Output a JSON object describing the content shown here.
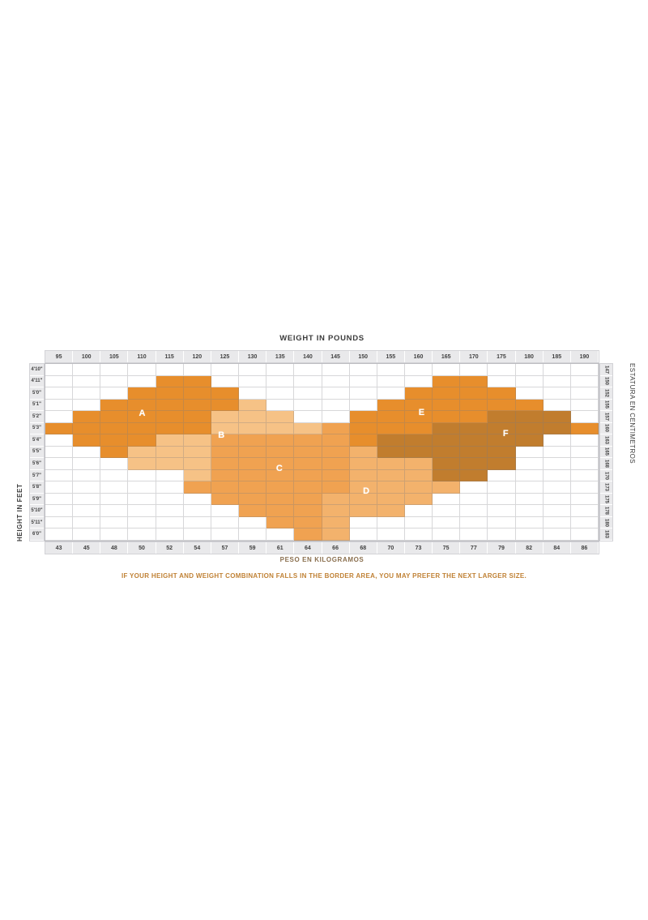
{
  "footnote": "IF YOUR HEIGHT AND WEIGHT COMBINATION FALLS IN THE BORDER AREA, YOU MAY PREFER THE NEXT LARGER SIZE.",
  "chart_data": {
    "type": "heatmap",
    "title": "WEIGHT IN POUNDS",
    "axes": {
      "top": {
        "label": "WEIGHT IN POUNDS",
        "unit": "lb",
        "ticks": [
          95,
          100,
          105,
          110,
          115,
          120,
          125,
          130,
          135,
          140,
          145,
          150,
          155,
          160,
          165,
          170,
          175,
          180,
          185,
          190
        ]
      },
      "bottom": {
        "label": "PESO EN KILOGRAMOS",
        "unit": "kg",
        "ticks": [
          43,
          45,
          48,
          50,
          52,
          54,
          57,
          59,
          61,
          64,
          66,
          68,
          70,
          73,
          75,
          77,
          79,
          82,
          84,
          86
        ]
      },
      "left": {
        "label": "HEIGHT IN FEET",
        "unit": "ft-in",
        "ticks": [
          "4'10\"",
          "4'11\"",
          "5'0\"",
          "5'1\"",
          "5'2\"",
          "5'3\"",
          "5'4\"",
          "5'5\"",
          "5'6\"",
          "5'7\"",
          "5'8\"",
          "5'9\"",
          "5'10\"",
          "5'11\"",
          "6'0\""
        ]
      },
      "right": {
        "label": "ESTATURA EN CENTIMETROS",
        "unit": "cm",
        "ticks": [
          147,
          150,
          152,
          155,
          157,
          160,
          163,
          165,
          168,
          170,
          173,
          175,
          178,
          180,
          183
        ]
      }
    },
    "colors": {
      "A": "#e78e2c",
      "B": "#f6c286",
      "C": "#f0a251",
      "D": "#f3b26c",
      "E": "#e78e2c",
      "F": "#c17d2e"
    },
    "size_labels": [
      {
        "size": "A",
        "x_pct": 17.5,
        "y_pct": 28.2
      },
      {
        "size": "B",
        "x_pct": 31.8,
        "y_pct": 40.5
      },
      {
        "size": "C",
        "x_pct": 42.3,
        "y_pct": 59.0
      },
      {
        "size": "D",
        "x_pct": 58.0,
        "y_pct": 72.0
      },
      {
        "size": "E",
        "x_pct": 68.0,
        "y_pct": 27.5
      },
      {
        "size": "F",
        "x_pct": 83.2,
        "y_pct": 39.5
      }
    ],
    "grid_rows": [
      {
        "height_ft": "4'10\"",
        "height_cm": 147,
        "runs": []
      },
      {
        "height_ft": "4'11\"",
        "height_cm": 150,
        "runs": [
          {
            "s": "A",
            "f": 5,
            "t": 6
          },
          {
            "s": "E",
            "f": 15,
            "t": 16
          }
        ]
      },
      {
        "height_ft": "5'0\"",
        "height_cm": 152,
        "runs": [
          {
            "s": "A",
            "f": 4,
            "t": 7
          },
          {
            "s": "E",
            "f": 14,
            "t": 17
          }
        ]
      },
      {
        "height_ft": "5'1\"",
        "height_cm": 155,
        "runs": [
          {
            "s": "A",
            "f": 3,
            "t": 7
          },
          {
            "s": "B",
            "f": 8,
            "t": 8
          },
          {
            "s": "E",
            "f": 13,
            "t": 18
          }
        ]
      },
      {
        "height_ft": "5'2\"",
        "height_cm": 157,
        "runs": [
          {
            "s": "A",
            "f": 2,
            "t": 6
          },
          {
            "s": "B",
            "f": 7,
            "t": 9
          },
          {
            "s": "E",
            "f": 12,
            "t": 16
          },
          {
            "s": "F",
            "f": 17,
            "t": 19
          }
        ]
      },
      {
        "height_ft": "5'3\"",
        "height_cm": 160,
        "runs": [
          {
            "s": "A",
            "f": 1,
            "t": 6
          },
          {
            "s": "B",
            "f": 7,
            "t": 10
          },
          {
            "s": "C",
            "f": 11,
            "t": 11
          },
          {
            "s": "E",
            "f": 12,
            "t": 14
          },
          {
            "s": "F",
            "f": 15,
            "t": 19
          },
          {
            "s": "E",
            "f": 20,
            "t": 20
          }
        ]
      },
      {
        "height_ft": "5'4\"",
        "height_cm": 163,
        "runs": [
          {
            "s": "A",
            "f": 2,
            "t": 4
          },
          {
            "s": "B",
            "f": 5,
            "t": 6
          },
          {
            "s": "C",
            "f": 7,
            "t": 11
          },
          {
            "s": "E",
            "f": 12,
            "t": 12
          },
          {
            "s": "F",
            "f": 13,
            "t": 18
          }
        ]
      },
      {
        "height_ft": "5'5\"",
        "height_cm": 165,
        "runs": [
          {
            "s": "A",
            "f": 3,
            "t": 3
          },
          {
            "s": "B",
            "f": 4,
            "t": 6
          },
          {
            "s": "C",
            "f": 7,
            "t": 11
          },
          {
            "s": "D",
            "f": 12,
            "t": 12
          },
          {
            "s": "F",
            "f": 13,
            "t": 17
          }
        ]
      },
      {
        "height_ft": "5'6\"",
        "height_cm": 168,
        "runs": [
          {
            "s": "B",
            "f": 4,
            "t": 6
          },
          {
            "s": "C",
            "f": 7,
            "t": 11
          },
          {
            "s": "D",
            "f": 12,
            "t": 14
          },
          {
            "s": "F",
            "f": 15,
            "t": 17
          }
        ]
      },
      {
        "height_ft": "5'7\"",
        "height_cm": 170,
        "runs": [
          {
            "s": "B",
            "f": 6,
            "t": 6
          },
          {
            "s": "C",
            "f": 7,
            "t": 11
          },
          {
            "s": "D",
            "f": 12,
            "t": 14
          },
          {
            "s": "F",
            "f": 15,
            "t": 16
          }
        ]
      },
      {
        "height_ft": "5'8\"",
        "height_cm": 173,
        "runs": [
          {
            "s": "C",
            "f": 6,
            "t": 11
          },
          {
            "s": "D",
            "f": 12,
            "t": 15
          }
        ]
      },
      {
        "height_ft": "5'9\"",
        "height_cm": 175,
        "runs": [
          {
            "s": "C",
            "f": 7,
            "t": 10
          },
          {
            "s": "D",
            "f": 11,
            "t": 14
          }
        ]
      },
      {
        "height_ft": "5'10\"",
        "height_cm": 178,
        "runs": [
          {
            "s": "C",
            "f": 8,
            "t": 10
          },
          {
            "s": "D",
            "f": 11,
            "t": 13
          }
        ]
      },
      {
        "height_ft": "5'11\"",
        "height_cm": 180,
        "runs": [
          {
            "s": "C",
            "f": 9,
            "t": 10
          },
          {
            "s": "D",
            "f": 11,
            "t": 11
          }
        ]
      },
      {
        "height_ft": "6'0\"",
        "height_cm": 183,
        "runs": [
          {
            "s": "C",
            "f": 10,
            "t": 10
          },
          {
            "s": "D",
            "f": 11,
            "t": 11
          }
        ]
      }
    ]
  }
}
